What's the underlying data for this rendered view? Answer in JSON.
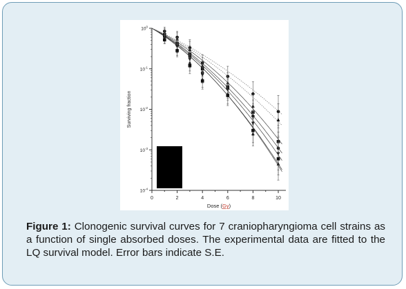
{
  "figure": {
    "caption_label": "Figure 1:",
    "caption_text": " Clonogenic survival curves for 7 craniopharyngioma cell strains as a function of single absorbed doses. The experimental data are fitted to the LQ survival model. Error bars indicate S.E."
  },
  "colors": {
    "card_background": "#e3eef4",
    "card_border": "#6e9cb6",
    "marker": "#111111",
    "gy_underline": "#c0392b"
  },
  "chart_data": {
    "type": "scatter",
    "xlabel_prefix": "Dose (",
    "xlabel_unit": "Gy",
    "xlabel_suffix": ")",
    "ylabel": "Surviving  fraction",
    "xlim": [
      0,
      10.6
    ],
    "ylim": [
      0.0001,
      1
    ],
    "yscale": "log",
    "x_ticks": [
      {
        "value": 0,
        "label": "0"
      },
      {
        "value": 2,
        "label": "2"
      },
      {
        "value": 4,
        "label": "4"
      },
      {
        "value": 6,
        "label": "6"
      },
      {
        "value": 8,
        "label": "8"
      },
      {
        "value": 10,
        "label": "10"
      }
    ],
    "y_ticks": [
      {
        "value": 1,
        "base": "10",
        "exp": "0"
      },
      {
        "value": 0.1,
        "base": "10",
        "exp": "-1"
      },
      {
        "value": 0.01,
        "base": "10",
        "exp": "-2"
      },
      {
        "value": 0.001,
        "base": "10",
        "exp": "-3"
      },
      {
        "value": 0.0001,
        "base": "10",
        "exp": "-4"
      }
    ],
    "x": [
      1,
      2,
      3,
      4,
      6,
      8,
      10
    ],
    "series": [
      {
        "marker": "circle",
        "values": [
          0.85,
          0.6,
          0.33,
          0.14,
          0.065,
          0.024,
          0.0088
        ],
        "err": [
          0.1,
          0.15,
          0.2,
          0.2,
          0.25,
          0.3,
          0.4
        ],
        "fit": {
          "alpha": 0.31,
          "beta": 0.016
        },
        "fit_style": "dotted"
      },
      {
        "marker": "triangle",
        "values": [
          0.78,
          0.55,
          0.3,
          0.12,
          0.045,
          0.012,
          0.0055
        ],
        "err": [
          0.1,
          0.15,
          0.2,
          0.2,
          0.25,
          0.3,
          0.4
        ],
        "fit": {
          "alpha": 0.33,
          "beta": 0.02
        },
        "fit_style": "dotted"
      },
      {
        "marker": "square",
        "values": [
          0.7,
          0.42,
          0.23,
          0.1,
          0.036,
          0.0085,
          0.0016
        ],
        "err": [
          0.1,
          0.15,
          0.2,
          0.2,
          0.25,
          0.3,
          0.4
        ],
        "fit": {
          "alpha": 0.34,
          "beta": 0.029
        },
        "fit_style": "solid"
      },
      {
        "marker": "circle",
        "values": [
          0.62,
          0.38,
          0.2,
          0.08,
          0.033,
          0.0068,
          0.0011
        ],
        "err": [
          0.1,
          0.15,
          0.2,
          0.2,
          0.25,
          0.3,
          0.4
        ],
        "fit": {
          "alpha": 0.38,
          "beta": 0.03
        },
        "fit_style": "solid"
      },
      {
        "marker": "triangle-down",
        "values": [
          0.6,
          0.35,
          0.17,
          0.07,
          0.03,
          0.0045,
          0.0008
        ],
        "err": [
          0.1,
          0.15,
          0.2,
          0.2,
          0.25,
          0.3,
          0.4
        ],
        "fit": {
          "alpha": 0.4,
          "beta": 0.032
        },
        "fit_style": "solid"
      },
      {
        "marker": "triangle",
        "values": [
          0.55,
          0.3,
          0.14,
          0.055,
          0.024,
          0.0025,
          0.00045
        ],
        "err": [
          0.1,
          0.15,
          0.2,
          0.2,
          0.25,
          0.3,
          0.4
        ],
        "fit": {
          "alpha": 0.43,
          "beta": 0.034
        },
        "fit_style": "solid"
      },
      {
        "marker": "square",
        "values": [
          0.52,
          0.28,
          0.12,
          0.05,
          0.022,
          0.003,
          0.0006
        ],
        "err": [
          0.1,
          0.15,
          0.2,
          0.2,
          0.25,
          0.3,
          0.4
        ],
        "fit": {
          "alpha": 0.42,
          "beta": 0.036
        },
        "fit_style": "solid"
      }
    ],
    "grid": false,
    "legend": "none"
  }
}
